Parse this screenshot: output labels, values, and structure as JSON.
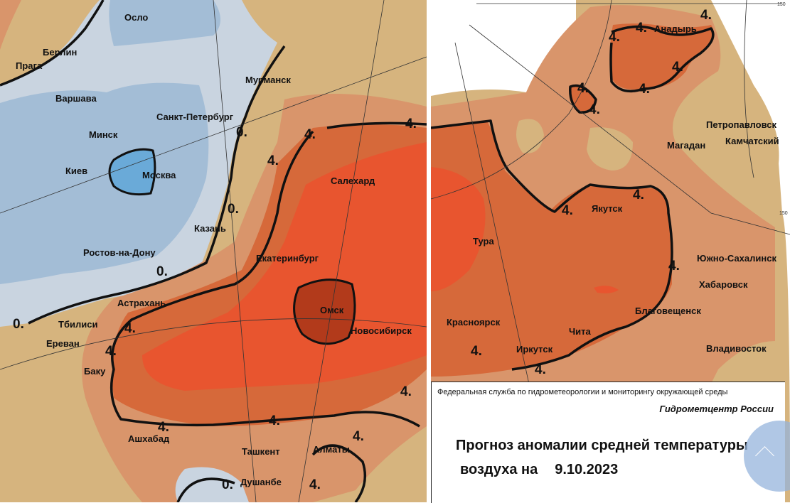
{
  "map": {
    "colors": {
      "anomaly_below_-2": "#6aaad8",
      "anomaly_-2_0_dark": "#a3bdd6",
      "anomaly_-2_0_light": "#c9d4e0",
      "anomaly_0_2": "#d6b47e",
      "anomaly_2_4": "#d9956b",
      "anomaly_4_6": "#d6693a",
      "anomaly_6_8": "#e8552f",
      "anomaly_above_8": "#b23a1b"
    },
    "isoline_labels": [
      "0.",
      "4."
    ],
    "left_cities": [
      "Осло",
      "Берлин",
      "Прага",
      "Варшава",
      "Санкт-Петербург",
      "Минск",
      "Киев",
      "Москва",
      "Мурманск",
      "Казань",
      "Ростов-на-Дону",
      "Салехард",
      "Екатеринбург",
      "Омск",
      "Новосибирск",
      "Астрахань",
      "Тбилиси",
      "Ереван",
      "Баку",
      "Ашхабад",
      "Ташкент",
      "Алматы",
      "Душанбе"
    ],
    "right_cities": [
      "Анадырь",
      "Петропавловск",
      "Камчатский",
      "Магадан",
      "Якутск",
      "Тура",
      "Южно-Сахалинск",
      "Хабаровск",
      "Благовещенск",
      "Красноярск",
      "Чита",
      "Иркутск",
      "Владивосток"
    ],
    "grid_labels": [
      "150",
      "150"
    ]
  },
  "legend_panel": {
    "agency": "Федеральная служба по гидрометеорологии и мониторингу окружающей среды",
    "center": "Гидрометцентр России",
    "title_line1": "Прогноз аномалии средней температуры",
    "title_line2": "воздуха на",
    "date": "9.10.2023"
  },
  "scroll_top_button": {
    "icon": "chevron-up-icon"
  }
}
